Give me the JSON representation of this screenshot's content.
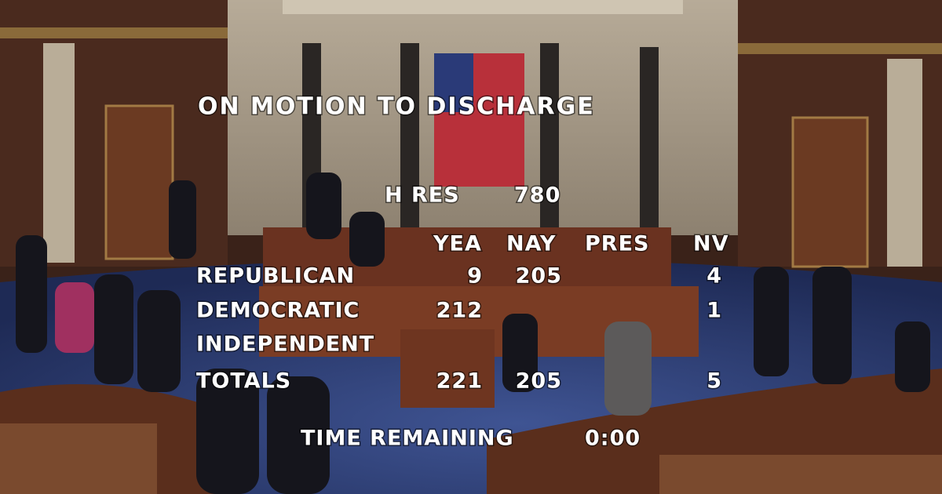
{
  "title": "ON MOTION TO DISCHARGE",
  "measure": {
    "label": "H RES",
    "number": 780
  },
  "tally": {
    "columns": [
      "YEA",
      "NAY",
      "PRES",
      "NV"
    ],
    "rows": [
      {
        "party": "REPUBLICAN",
        "values": [
          9,
          205,
          null,
          4
        ]
      },
      {
        "party": "DEMOCRATIC",
        "values": [
          212,
          null,
          null,
          1
        ]
      },
      {
        "party": "INDEPENDENT",
        "values": [
          null,
          null,
          null,
          null
        ]
      },
      {
        "party": "TOTALS",
        "values": [
          221,
          205,
          null,
          5
        ]
      }
    ]
  },
  "time_remaining": {
    "label": "TIME REMAINING",
    "value": "0:00"
  }
}
